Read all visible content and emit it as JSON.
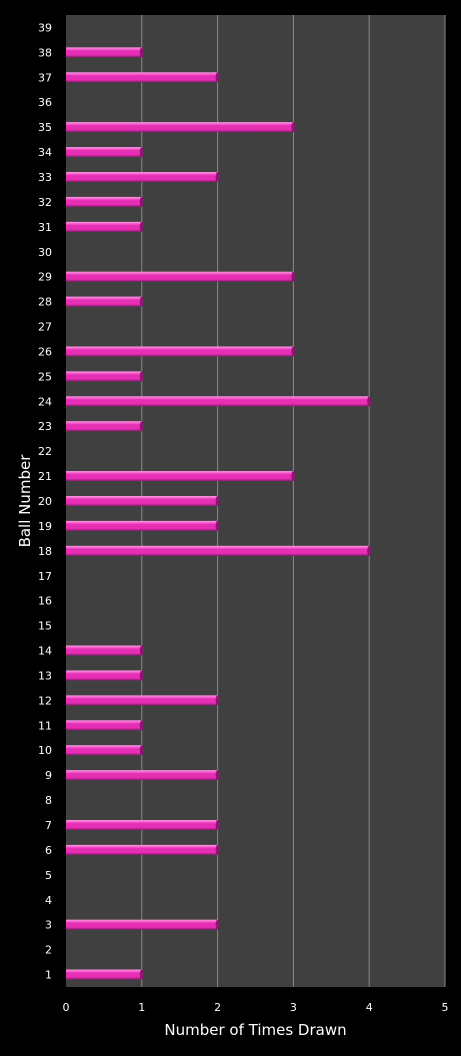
{
  "chart_data": {
    "type": "bar",
    "orientation": "horizontal",
    "xlabel": "Number of Times Drawn",
    "ylabel": "Ball Number",
    "xlim": [
      0,
      5
    ],
    "xticks": [
      0,
      1,
      2,
      3,
      4,
      5
    ],
    "grid": "vertical",
    "legend": "none",
    "categories": [
      "1",
      "2",
      "3",
      "4",
      "5",
      "6",
      "7",
      "8",
      "9",
      "10",
      "11",
      "12",
      "13",
      "14",
      "15",
      "16",
      "17",
      "18",
      "19",
      "20",
      "21",
      "22",
      "23",
      "24",
      "25",
      "26",
      "27",
      "28",
      "29",
      "30",
      "31",
      "32",
      "33",
      "34",
      "35",
      "36",
      "37",
      "38",
      "39"
    ],
    "values": [
      1,
      0,
      2,
      0,
      0,
      2,
      2,
      0,
      2,
      1,
      1,
      2,
      1,
      1,
      0,
      0,
      0,
      4,
      2,
      2,
      3,
      0,
      1,
      4,
      1,
      3,
      0,
      1,
      3,
      0,
      1,
      1,
      2,
      1,
      3,
      0,
      2,
      1,
      0
    ]
  },
  "colors": {
    "background": "#000000",
    "plot_area": "#404040",
    "gridline": "#8a8a8a",
    "bar": "#e62fb4",
    "bar_highlight": "#ff9be6",
    "bar_shadow": "#8c1670",
    "text": "#ffffff"
  }
}
